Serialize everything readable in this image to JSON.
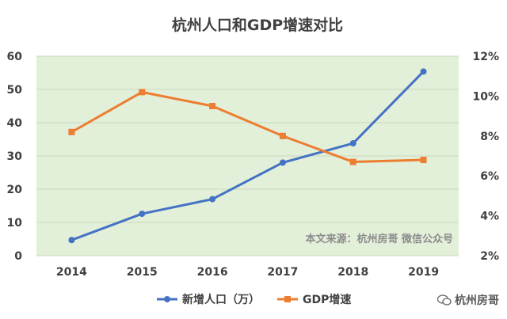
{
  "chart_data": {
    "type": "line",
    "title": "杭州人口和GDP增速对比",
    "categories": [
      "2014",
      "2015",
      "2016",
      "2017",
      "2018",
      "2019"
    ],
    "y_left": {
      "ticks": [
        "0",
        "10",
        "20",
        "30",
        "40",
        "50",
        "60"
      ],
      "range": [
        0,
        60
      ]
    },
    "y_right": {
      "ticks": [
        "2%",
        "4%",
        "6%",
        "8%",
        "10%",
        "12%"
      ],
      "range": [
        2,
        12
      ]
    },
    "series": [
      {
        "name": "新增人口（万）",
        "axis": "left",
        "color": "#4472c4",
        "values": [
          4.7,
          12.6,
          17.0,
          28.0,
          33.8,
          55.4
        ]
      },
      {
        "name": "GDP增速",
        "axis": "right",
        "color": "#ed7d31",
        "values": [
          8.2,
          10.2,
          9.5,
          8.0,
          6.7,
          6.8
        ]
      }
    ],
    "annotation": "本文来源：杭州房哥 微信公众号",
    "plot_background": "#e2efd9",
    "grid": true,
    "legend_position": "bottom"
  },
  "watermark": {
    "text": "杭州房哥",
    "icon": "wechat-icon"
  }
}
